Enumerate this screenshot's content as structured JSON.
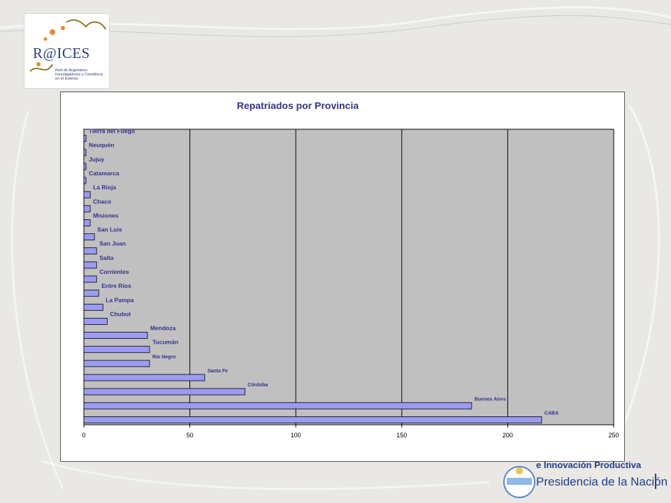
{
  "logo": {
    "wordmark": "R@ICES",
    "subtitle": "Red de Argentinos Investigadores y Científicos en el Exterior"
  },
  "chart_data": {
    "type": "bar",
    "orientation": "horizontal",
    "title": "Repatriados por Provincia",
    "xlabel": "",
    "ylabel": "",
    "xlim": [
      0,
      250
    ],
    "xticks": [
      0,
      50,
      100,
      150,
      200,
      250
    ],
    "grid": true,
    "legend": "none",
    "categories": [
      "CABA",
      "Buenos Aires",
      "Córdoba",
      "Santa Fe",
      "Río Negro",
      "Tucumán",
      "Mendoza",
      "Chubut",
      "La Pampa",
      "Entre Ríos",
      "Corrientes",
      "Salta",
      "San Juan",
      "San Luis",
      "Misiones",
      "Chaco",
      "La Rioja",
      "Catamarca",
      "Jujuy",
      "Neuquén",
      "Tierra del Fuego"
    ],
    "values": [
      216,
      183,
      76,
      57,
      31,
      31,
      30,
      11,
      9,
      7,
      6,
      6,
      6,
      5,
      3,
      3,
      3,
      1,
      1,
      1,
      1
    ],
    "colors": {
      "bar": "#9b9bf2",
      "plot_bg": "#c0c0c0",
      "title": "#33338a",
      "label": "#33338a"
    }
  },
  "footer": {
    "line1": "e Innovación Productiva",
    "line2": "Presidencia de la Nación"
  }
}
